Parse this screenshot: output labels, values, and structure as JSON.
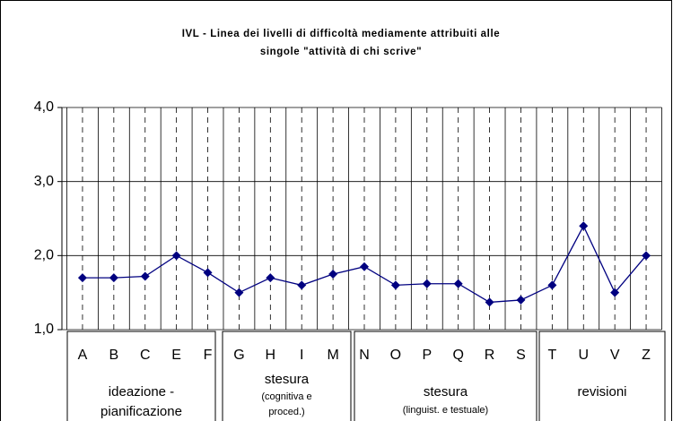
{
  "chart_data": {
    "type": "line",
    "title": [
      "IVL - Linea dei livelli di difficoltà mediamente attribuiti alle",
      "singole \"attività di chi scrive\""
    ],
    "categories": [
      "A",
      "B",
      "C",
      "E",
      "F",
      "G",
      "H",
      "I",
      "M",
      "N",
      "O",
      "P",
      "Q",
      "R",
      "S",
      "T",
      "U",
      "V",
      "Z"
    ],
    "series": [
      {
        "name": "IVL",
        "color": "#000080",
        "values": [
          1.7,
          1.7,
          1.72,
          2.0,
          1.77,
          1.5,
          1.7,
          1.6,
          1.75,
          1.85,
          1.6,
          1.62,
          1.62,
          1.37,
          1.4,
          1.6,
          2.4,
          1.5,
          2.0
        ]
      }
    ],
    "ylim": [
      1,
      4
    ],
    "yticks": [
      {
        "value": 1,
        "label": "1,0"
      },
      {
        "value": 2,
        "label": "2,0"
      },
      {
        "value": 3,
        "label": "3,0"
      },
      {
        "value": 4,
        "label": "4,0"
      }
    ],
    "grid": true,
    "groups": [
      {
        "label": [
          "ideazione -",
          "pianificazione"
        ]
      },
      {
        "label": [
          "stesura",
          "(cognitiva e",
          "proced.)"
        ]
      },
      {
        "label": [
          "stesura",
          "(linguist. e  testuale)"
        ]
      },
      {
        "label": [
          "revisioni"
        ]
      }
    ]
  }
}
